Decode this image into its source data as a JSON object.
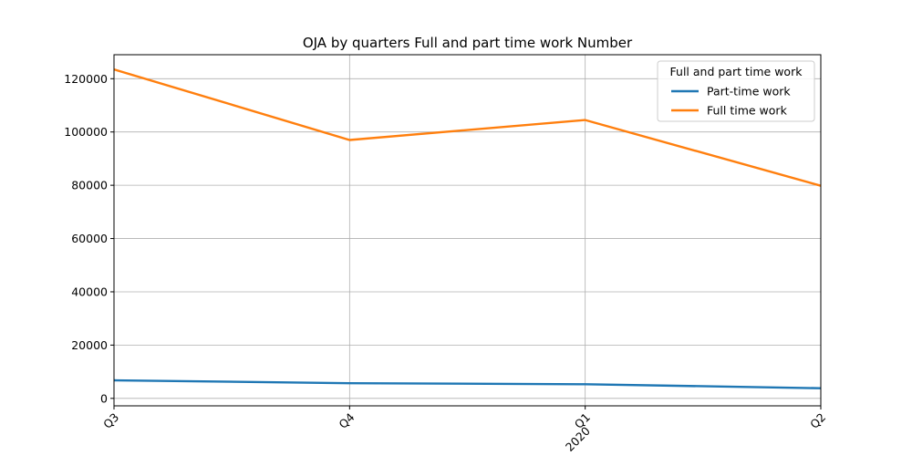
{
  "chart_data": {
    "type": "line",
    "title": "OJA by quarters Full and part time work Number",
    "categories": [
      "Q3",
      "Q4",
      "Q1",
      "Q2"
    ],
    "secondary_labels": [
      "",
      "",
      "2020",
      ""
    ],
    "ylim": [
      -2800,
      129000
    ],
    "yticks": [
      0,
      20000,
      40000,
      60000,
      80000,
      100000,
      120000
    ],
    "grid": true,
    "legend": {
      "title": "Full and part time work",
      "placement": "top-right"
    },
    "series": [
      {
        "name": "Part-time work",
        "color": "#1f77b4",
        "values": [
          6800,
          5700,
          5300,
          3800
        ]
      },
      {
        "name": "Full time work",
        "color": "#ff7f0e",
        "values": [
          123500,
          97000,
          104500,
          79800
        ]
      }
    ]
  }
}
